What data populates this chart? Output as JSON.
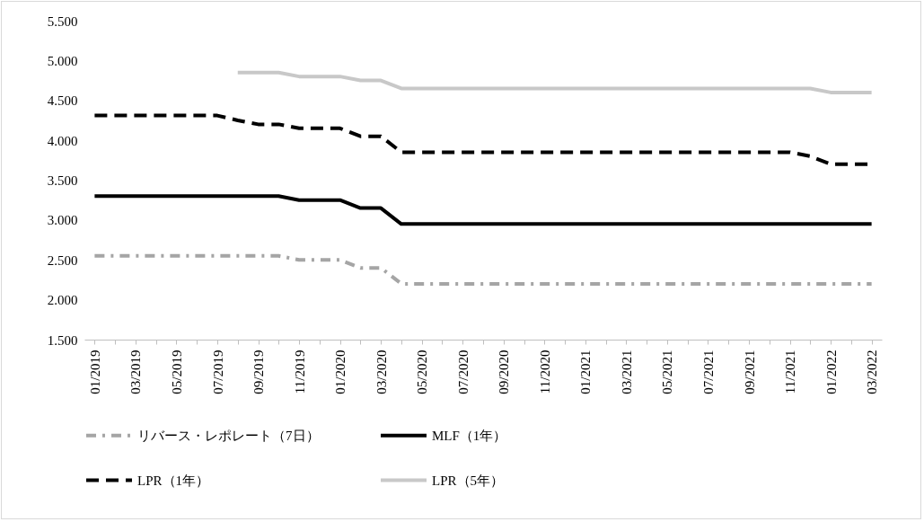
{
  "chart_data": {
    "type": "line",
    "categories": [
      "01/2019",
      null,
      "03/2019",
      null,
      "05/2019",
      null,
      "07/2019",
      null,
      "09/2019",
      null,
      "11/2019",
      null,
      "01/2020",
      null,
      "03/2020",
      null,
      "05/2020",
      null,
      "07/2020",
      null,
      "09/2020",
      null,
      "11/2020",
      null,
      "01/2021",
      null,
      "03/2021",
      null,
      "05/2021",
      null,
      "07/2021",
      null,
      "09/2021",
      null,
      "11/2021",
      null,
      "01/2022",
      null,
      "03/2022"
    ],
    "series": [
      {
        "name": "リバース・レポレート（7日）",
        "color": "#a5a5a5",
        "line_style": "dotted",
        "values": [
          2.55,
          2.55,
          2.55,
          2.55,
          2.55,
          2.55,
          2.55,
          2.55,
          2.55,
          2.55,
          2.5,
          2.5,
          2.5,
          2.4,
          2.4,
          2.2,
          2.2,
          2.2,
          2.2,
          2.2,
          2.2,
          2.2,
          2.2,
          2.2,
          2.2,
          2.2,
          2.2,
          2.2,
          2.2,
          2.2,
          2.2,
          2.2,
          2.2,
          2.2,
          2.2,
          2.2,
          2.2,
          2.2,
          2.2
        ]
      },
      {
        "name": "MLF（1年）",
        "color": "#000000",
        "line_style": "solid",
        "values": [
          3.3,
          3.3,
          3.3,
          3.3,
          3.3,
          3.3,
          3.3,
          3.3,
          3.3,
          3.3,
          3.25,
          3.25,
          3.25,
          3.15,
          3.15,
          2.95,
          2.95,
          2.95,
          2.95,
          2.95,
          2.95,
          2.95,
          2.95,
          2.95,
          2.95,
          2.95,
          2.95,
          2.95,
          2.95,
          2.95,
          2.95,
          2.95,
          2.95,
          2.95,
          2.95,
          2.95,
          2.95,
          2.95,
          2.95
        ]
      },
      {
        "name": "LPR（1年）",
        "color": "#000000",
        "line_style": "dashed",
        "values": [
          4.31,
          4.31,
          4.31,
          4.31,
          4.31,
          4.31,
          4.31,
          4.25,
          4.2,
          4.2,
          4.15,
          4.15,
          4.15,
          4.05,
          4.05,
          3.85,
          3.85,
          3.85,
          3.85,
          3.85,
          3.85,
          3.85,
          3.85,
          3.85,
          3.85,
          3.85,
          3.85,
          3.85,
          3.85,
          3.85,
          3.85,
          3.85,
          3.85,
          3.85,
          3.85,
          3.8,
          3.7,
          3.7,
          3.7
        ]
      },
      {
        "name": "LPR（5年）",
        "color": "#c8c8c8",
        "line_style": "solid",
        "values": [
          null,
          null,
          null,
          null,
          null,
          null,
          null,
          4.85,
          4.85,
          4.85,
          4.8,
          4.8,
          4.8,
          4.75,
          4.75,
          4.65,
          4.65,
          4.65,
          4.65,
          4.65,
          4.65,
          4.65,
          4.65,
          4.65,
          4.65,
          4.65,
          4.65,
          4.65,
          4.65,
          4.65,
          4.65,
          4.65,
          4.65,
          4.65,
          4.65,
          4.65,
          4.6,
          4.6,
          4.6
        ]
      }
    ],
    "ylim": [
      1.5,
      5.5
    ],
    "yticks": [
      {
        "value": 1.5,
        "label": "1.500"
      },
      {
        "value": 2,
        "label": "2.000"
      },
      {
        "value": 2.5,
        "label": "2.500"
      },
      {
        "value": 3,
        "label": "3.000"
      },
      {
        "value": 3.5,
        "label": "3.500"
      },
      {
        "value": 4,
        "label": "4.000"
      },
      {
        "value": 4.5,
        "label": "4.500"
      },
      {
        "value": 5,
        "label": "5.000"
      },
      {
        "value": 5.5,
        "label": "5.500"
      }
    ],
    "grid": false,
    "legend": "bottom",
    "marker": "none"
  }
}
